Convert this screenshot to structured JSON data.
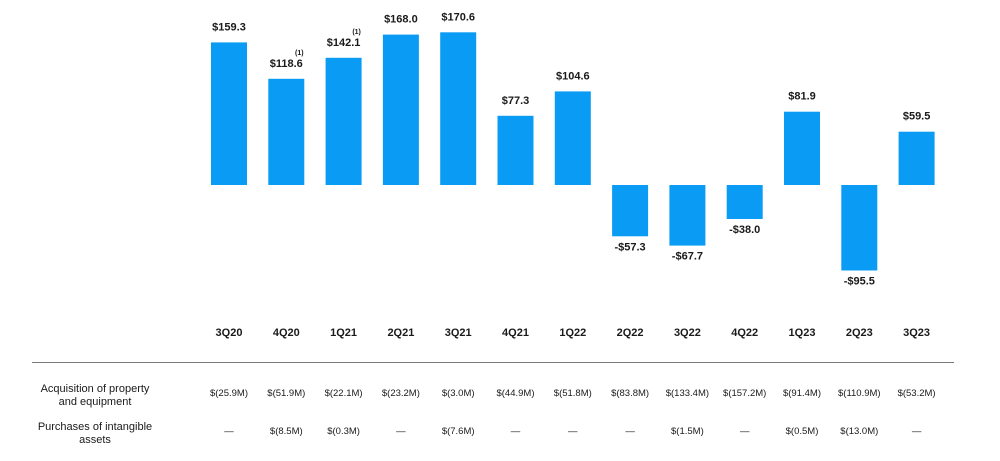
{
  "chart_data": {
    "type": "bar",
    "categories": [
      "3Q20",
      "4Q20",
      "1Q21",
      "2Q21",
      "3Q21",
      "4Q21",
      "1Q22",
      "2Q22",
      "3Q22",
      "4Q22",
      "1Q23",
      "2Q23",
      "3Q23"
    ],
    "values": [
      159.3,
      118.6,
      142.1,
      168.0,
      170.6,
      77.3,
      104.6,
      -57.3,
      -67.7,
      -38.0,
      81.9,
      -95.5,
      59.5
    ],
    "data_labels": [
      "$159.3",
      "$118.6",
      "$142.1",
      "$168.0",
      "$170.6",
      "$77.3",
      "$104.6",
      "-$57.3",
      "-$67.7",
      "-$38.0",
      "$81.9",
      "-$95.5",
      "$59.5"
    ],
    "footnote_marks": [
      "",
      "(1)",
      "(1)",
      "",
      "",
      "",
      "",
      "",
      "",
      "",
      "",
      "",
      ""
    ],
    "bar_color": "#0a9cf5",
    "grid": false,
    "legend": "none"
  },
  "table": {
    "rows": [
      {
        "label_lines": [
          "Acquisition of property",
          "and equipment"
        ],
        "cells": [
          "$(25.9M)",
          "$(51.9M)",
          "$(22.1M)",
          "$(23.2M)",
          "$(3.0M)",
          "$(44.9M)",
          "$(51.8M)",
          "$(83.8M)",
          "$(133.4M)",
          "$(157.2M)",
          "$(91.4M)",
          "$(110.9M)",
          "$(53.2M)"
        ]
      },
      {
        "label_lines": [
          "Purchases of intangible",
          "assets"
        ],
        "cells": [
          "—",
          "$(8.5M)",
          "$(0.3M)",
          "—",
          "$(7.6M)",
          "—",
          "—",
          "—",
          "$(1.5M)",
          "—",
          "$(0.5M)",
          "$(13.0M)",
          "—"
        ]
      }
    ]
  }
}
